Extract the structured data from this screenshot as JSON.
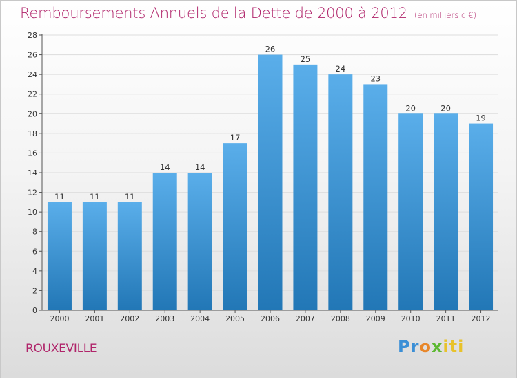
{
  "header": {
    "title": "Remboursements Annuels de la Dette de 2000 à 2012",
    "unit": "(en milliers d'€)"
  },
  "footer": {
    "commune": "ROUXEVILLE",
    "brand_parts": [
      "Pr",
      "o",
      "x",
      "iti"
    ]
  },
  "colors": {
    "title": "#b0246a",
    "bar_top": "#5aaeea",
    "bar_bottom": "#2277b6",
    "grid": "#dddddd"
  },
  "chart_data": {
    "type": "bar",
    "title": "Remboursements Annuels de la Dette de 2000 à 2012",
    "xlabel": "",
    "ylabel": "",
    "categories": [
      "2000",
      "2001",
      "2002",
      "2003",
      "2004",
      "2005",
      "2006",
      "2007",
      "2008",
      "2009",
      "2010",
      "2011",
      "2012"
    ],
    "values": [
      11,
      11,
      11,
      14,
      14,
      17,
      26,
      25,
      24,
      23,
      20,
      20,
      19
    ],
    "ylim": [
      0,
      28
    ],
    "yticks": [
      0,
      2,
      4,
      6,
      8,
      10,
      12,
      14,
      16,
      18,
      20,
      22,
      24,
      26,
      28
    ],
    "grid": true
  }
}
